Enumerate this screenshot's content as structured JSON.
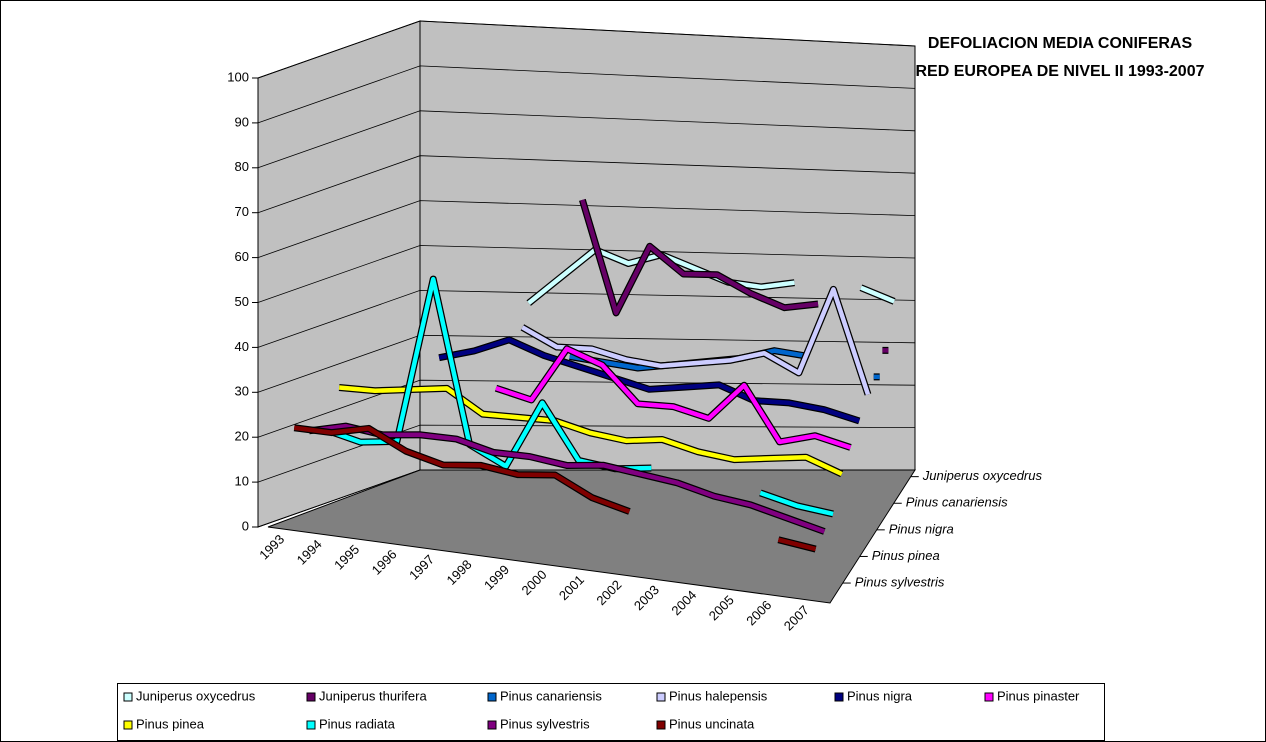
{
  "chart_data": {
    "type": "line3d",
    "title": "DEFOLIACION MEDIA CONIFERAS",
    "subtitle": "RED EUROPEA DE NIVEL II 1993-2007",
    "categories": [
      "1993",
      "1994",
      "1995",
      "1996",
      "1997",
      "1998",
      "1999",
      "2000",
      "2001",
      "2002",
      "2003",
      "2004",
      "2005",
      "2006",
      "2007"
    ],
    "ylim": [
      0,
      100
    ],
    "yticks": [
      0,
      10,
      20,
      30,
      40,
      50,
      60,
      70,
      80,
      90,
      100
    ],
    "grid": true,
    "series": [
      {
        "name": "Juniperus oxycedrus",
        "color": "#ccffff",
        "values": [
          null,
          null,
          null,
          38,
          44,
          50,
          47,
          49,
          46,
          43,
          42,
          43,
          null,
          42,
          39
        ]
      },
      {
        "name": "Juniperus thurifera",
        "color": "#660066",
        "values": [
          null,
          null,
          null,
          null,
          null,
          63,
          38,
          53,
          47,
          47,
          43,
          40,
          41,
          null,
          31
        ]
      },
      {
        "name": "Pinus canariensis",
        "color": "#0066cc",
        "values": [
          null,
          null,
          null,
          null,
          null,
          30,
          29,
          28,
          29,
          30,
          31,
          33,
          32,
          null,
          28
        ]
      },
      {
        "name": "Pinus halepensis",
        "color": "#ccccff",
        "values": [
          null,
          null,
          null,
          null,
          38,
          34,
          34,
          32,
          31,
          32,
          33,
          35,
          31,
          50,
          27
        ]
      },
      {
        "name": "Pinus nigra",
        "color": "#000080",
        "values": [
          null,
          null,
          32,
          34,
          37,
          34,
          32,
          30,
          28,
          29,
          30,
          27,
          27,
          26,
          24
        ]
      },
      {
        "name": "Pinus pinaster",
        "color": "#ff00ff",
        "values": [
          null,
          null,
          null,
          null,
          28,
          26,
          38,
          35,
          27,
          27,
          25,
          33,
          21,
          23,
          21
        ]
      },
      {
        "name": "Pinus pinea",
        "color": "#ffff00",
        "values": [
          27,
          27,
          28,
          29,
          24,
          24,
          24,
          22,
          21,
          22,
          20,
          19,
          20,
          21,
          18
        ]
      },
      {
        "name": "Pinus radiata",
        "color": "#00ffff",
        "values": [
          19,
          17,
          18,
          55,
          19,
          15,
          30,
          18,
          17,
          18,
          null,
          null,
          15,
          13,
          12
        ]
      },
      {
        "name": "Pinus sylvestris",
        "color": "#800080",
        "values": [
          20,
          22,
          21,
          22,
          22,
          20,
          20,
          19,
          20,
          19,
          18,
          16,
          15,
          13,
          11
        ]
      },
      {
        "name": "Pinus uncinata",
        "color": "#800000",
        "values": [
          22,
          22,
          24,
          20,
          18,
          19,
          18,
          19,
          15,
          13,
          null,
          null,
          null,
          11,
          10
        ]
      }
    ],
    "legend": "bottom"
  }
}
